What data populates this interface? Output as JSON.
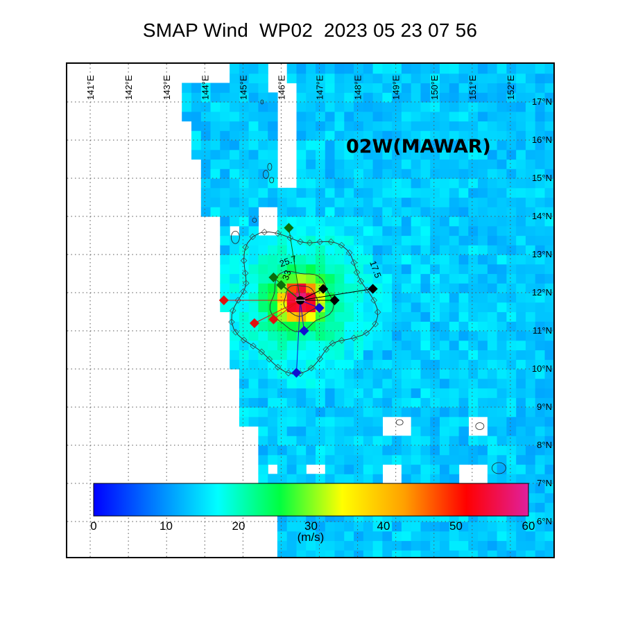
{
  "title": {
    "product": "SMAP Wind",
    "basin_id": "WP02",
    "datetime": "2023 05 23 07 56",
    "full": "SMAP Wind  WP02  2023 05 23 07 56"
  },
  "storm": {
    "name": "02W(MAWAR)"
  },
  "map": {
    "lon_range": [
      140.4,
      153.2
    ],
    "lat_range": [
      5.0,
      18.0
    ],
    "lon_ticks": [
      141,
      142,
      143,
      144,
      145,
      146,
      147,
      148,
      149,
      150,
      151,
      152
    ],
    "lat_ticks": [
      17,
      16,
      15,
      14,
      13,
      12,
      11,
      10,
      9,
      8,
      7,
      6
    ],
    "lon_labels": [
      "141°E",
      "142°E",
      "143°E",
      "144°E",
      "145°E",
      "146°E",
      "147°E",
      "148°E",
      "149°E",
      "150°E",
      "151°E",
      "152°E"
    ],
    "lat_labels": [
      "17°N",
      "16°N",
      "15°N",
      "14°N",
      "13°N",
      "12°N",
      "11°N",
      "10°N",
      "9°N",
      "8°N",
      "7°N",
      "6°N"
    ],
    "grid": true,
    "storm_center": {
      "lon": 146.5,
      "lat": 11.8
    },
    "contour_labels": [
      "25.7",
      "33",
      "17.5"
    ],
    "wind_radii_points": [
      {
        "lon": 146.2,
        "lat": 13.7,
        "color": "#0b6e0b"
      },
      {
        "lon": 146.0,
        "lat": 12.2,
        "color": "#0b6e0b"
      },
      {
        "lon": 145.8,
        "lat": 12.4,
        "color": "#0b6e0b"
      },
      {
        "lon": 147.4,
        "lat": 11.8,
        "color": "#000000"
      },
      {
        "lon": 147.1,
        "lat": 12.1,
        "color": "#000000"
      },
      {
        "lon": 148.4,
        "lat": 12.1,
        "color": "#000000"
      },
      {
        "lon": 144.5,
        "lat": 11.8,
        "color": "#e01010"
      },
      {
        "lon": 145.3,
        "lat": 11.2,
        "color": "#e01010"
      },
      {
        "lon": 145.8,
        "lat": 11.3,
        "color": "#e01010"
      },
      {
        "lon": 146.6,
        "lat": 11.0,
        "color": "#1010d0"
      },
      {
        "lon": 147.0,
        "lat": 11.6,
        "color": "#1010d0"
      },
      {
        "lon": 146.4,
        "lat": 9.9,
        "color": "#1010d0"
      }
    ]
  },
  "colorbar": {
    "min": 0,
    "max": 60,
    "ticks": [
      "0",
      "10",
      "20",
      "30",
      "40",
      "50",
      "60"
    ],
    "unit": "(m/s)",
    "stops": [
      "#0000ff",
      "#0080ff",
      "#00ffff",
      "#00ff40",
      "#ffff00",
      "#ffa000",
      "#ff0000",
      "#e0209e"
    ]
  }
}
